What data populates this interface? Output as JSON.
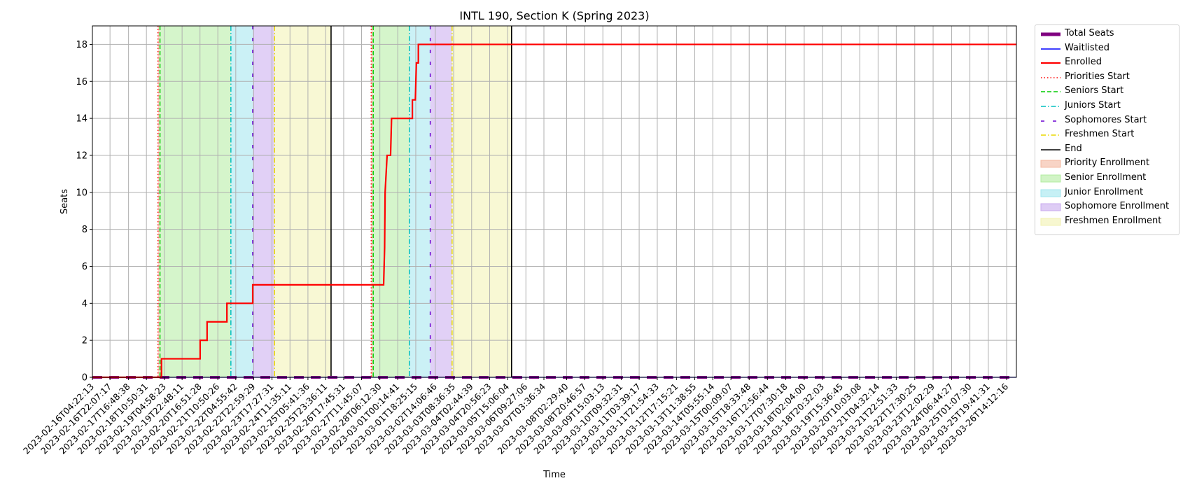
{
  "chart_data": {
    "type": "line",
    "title": "INTL 190, Section K (Spring 2023)",
    "xlabel": "Time",
    "ylabel": "Seats",
    "ylim": [
      0,
      19
    ],
    "xlim": [
      "2023-02-16T04:22:13",
      "2023-03-27T00:00:00"
    ],
    "grid": true,
    "legend_position": "outside-right",
    "y_ticks": [
      0,
      2,
      4,
      6,
      8,
      10,
      12,
      14,
      16,
      18
    ],
    "x_ticks": [
      "2023-02-16T04:22:13",
      "2023-02-16T22:07:17",
      "2023-02-17T16:48:38",
      "2023-02-18T10:50:31",
      "2023-02-19T04:58:23",
      "2023-02-19T22:48:11",
      "2023-02-20T16:51:28",
      "2023-02-21T10:50:26",
      "2023-02-22T04:55:42",
      "2023-02-22T22:59:29",
      "2023-02-23T17:27:31",
      "2023-02-24T11:35:11",
      "2023-02-25T05:41:36",
      "2023-02-25T23:36:11",
      "2023-02-26T17:45:31",
      "2023-02-27T11:45:07",
      "2023-02-28T06:12:30",
      "2023-03-01T00:14:41",
      "2023-03-01T18:25:15",
      "2023-03-02T14:06:46",
      "2023-03-03T08:36:35",
      "2023-03-04T02:44:39",
      "2023-03-04T20:56:23",
      "2023-03-05T15:06:04",
      "2023-03-06T09:27:06",
      "2023-03-07T03:36:34",
      "2023-03-08T02:29:40",
      "2023-03-08T20:46:57",
      "2023-03-09T15:03:13",
      "2023-03-10T09:32:31",
      "2023-03-11T03:39:17",
      "2023-03-11T21:54:33",
      "2023-03-12T17:15:21",
      "2023-03-13T11:38:55",
      "2023-03-14T05:55:14",
      "2023-03-15T00:09:07",
      "2023-03-15T18:33:48",
      "2023-03-16T12:56:44",
      "2023-03-17T07:30:18",
      "2023-03-18T02:04:00",
      "2023-03-18T20:32:03",
      "2023-03-19T15:36:45",
      "2023-03-20T10:03:08",
      "2023-03-21T04:32:14",
      "2023-03-21T22:51:33",
      "2023-03-22T17:30:25",
      "2023-03-23T12:02:29",
      "2023-03-24T06:44:27",
      "2023-03-25T01:07:30",
      "2023-03-25T19:41:31",
      "2023-03-26T14:12:16"
    ],
    "series": [
      {
        "name": "Total Seats",
        "style": "dashed-thick",
        "color": "#800080",
        "points": [
          [
            "2023-02-16T04:22:13",
            0
          ],
          [
            "2023-03-27T00:00:00",
            0
          ]
        ]
      },
      {
        "name": "Waitlisted",
        "style": "solid",
        "color": "#0000ff",
        "points": [
          [
            "2023-02-16T04:22:13",
            0
          ],
          [
            "2023-03-27T00:00:00",
            0
          ]
        ]
      },
      {
        "name": "Enrolled",
        "style": "step",
        "color": "#ff0000",
        "points": [
          [
            "2023-02-16T04:22:13",
            0
          ],
          [
            "2023-02-19T02:00:00",
            0
          ],
          [
            "2023-02-19T02:00:00",
            1
          ],
          [
            "2023-02-20T17:00:00",
            1
          ],
          [
            "2023-02-20T17:00:00",
            2
          ],
          [
            "2023-02-21T00:00:00",
            2
          ],
          [
            "2023-02-21T00:00:00",
            3
          ],
          [
            "2023-02-21T20:00:00",
            3
          ],
          [
            "2023-02-21T20:00:00",
            4
          ],
          [
            "2023-02-22T22:00:00",
            4
          ],
          [
            "2023-02-22T22:00:00",
            5
          ],
          [
            "2023-02-28T10:00:00",
            5
          ],
          [
            "2023-02-28T10:30:00",
            6
          ],
          [
            "2023-02-28T11:00:00",
            7
          ],
          [
            "2023-02-28T11:30:00",
            10
          ],
          [
            "2023-02-28T12:30:00",
            11
          ],
          [
            "2023-02-28T13:30:00",
            12
          ],
          [
            "2023-02-28T17:00:00",
            12
          ],
          [
            "2023-02-28T17:30:00",
            13
          ],
          [
            "2023-02-28T18:00:00",
            14
          ],
          [
            "2023-03-01T15:00:00",
            14
          ],
          [
            "2023-03-01T15:00:00",
            15
          ],
          [
            "2023-03-01T18:00:00",
            15
          ],
          [
            "2023-03-01T19:00:00",
            17
          ],
          [
            "2023-03-01T21:00:00",
            17
          ],
          [
            "2023-03-01T21:00:00",
            18
          ],
          [
            "2023-03-27T00:00:00",
            18
          ]
        ]
      }
    ],
    "vlines": [
      {
        "name": "Priorities Start",
        "color": "#ff0000",
        "style": "dotted",
        "x": [
          "2023-02-18T22:30:00",
          "2023-02-27T21:30:00"
        ]
      },
      {
        "name": "Seniors Start",
        "color": "#00cc00",
        "style": "dashed",
        "x": [
          "2023-02-19T00:30:00",
          "2023-02-27T23:30:00"
        ]
      },
      {
        "name": "Juniors Start",
        "color": "#00bfbf",
        "style": "dashdot",
        "x": [
          "2023-02-22T00:00:00",
          "2023-03-01T12:00:00"
        ]
      },
      {
        "name": "Sophomores Start",
        "color": "#6a00d0",
        "style": "loosedash",
        "x": [
          "2023-02-22T22:00:00",
          "2023-03-02T09:00:00"
        ]
      },
      {
        "name": "Freshmen Start",
        "color": "#e8d800",
        "style": "dashdot",
        "x": [
          "2023-02-23T20:00:00",
          "2023-03-03T07:00:00"
        ]
      },
      {
        "name": "End",
        "color": "#000000",
        "style": "solid",
        "x": [
          "2023-02-26T05:00:00",
          "2023-03-05T19:00:00"
        ]
      }
    ],
    "spans": [
      {
        "name": "Priority Enrollment",
        "color": "#f4b8a0",
        "ranges": [
          [
            "2023-02-18T22:30:00",
            "2023-02-19T00:30:00"
          ],
          [
            "2023-02-27T21:30:00",
            "2023-02-27T23:30:00"
          ]
        ]
      },
      {
        "name": "Senior Enrollment",
        "color": "#b2eca0",
        "ranges": [
          [
            "2023-02-19T00:30:00",
            "2023-02-22T00:00:00"
          ],
          [
            "2023-02-27T23:30:00",
            "2023-03-01T12:00:00"
          ]
        ]
      },
      {
        "name": "Junior Enrollment",
        "color": "#a0e6ee",
        "ranges": [
          [
            "2023-02-22T00:00:00",
            "2023-02-22T22:00:00"
          ],
          [
            "2023-03-01T12:00:00",
            "2023-03-02T09:00:00"
          ]
        ]
      },
      {
        "name": "Sophomore Enrollment",
        "color": "#c8aaee",
        "ranges": [
          [
            "2023-02-22T22:00:00",
            "2023-02-23T20:00:00"
          ],
          [
            "2023-03-02T09:00:00",
            "2023-03-03T07:00:00"
          ]
        ]
      },
      {
        "name": "Freshmen Enrollment",
        "color": "#f2f2b0",
        "ranges": [
          [
            "2023-02-23T20:00:00",
            "2023-02-26T05:00:00"
          ],
          [
            "2023-03-03T07:00:00",
            "2023-03-05T19:00:00"
          ]
        ]
      }
    ],
    "legend": [
      {
        "label": "Total Seats",
        "kind": "thick",
        "color": "#800080"
      },
      {
        "label": "Waitlisted",
        "kind": "line",
        "color": "#0000ff"
      },
      {
        "label": "Enrolled",
        "kind": "line2",
        "color": "#ff0000"
      },
      {
        "label": "Priorities Start",
        "kind": "dotted",
        "color": "#ff0000"
      },
      {
        "label": "Seniors Start",
        "kind": "dashed",
        "color": "#00cc00"
      },
      {
        "label": "Juniors Start",
        "kind": "dashdot",
        "color": "#00bfbf"
      },
      {
        "label": "Sophomores Start",
        "kind": "loosedash",
        "color": "#6a00d0"
      },
      {
        "label": "Freshmen Start",
        "kind": "dashdot",
        "color": "#e8d800"
      },
      {
        "label": "End",
        "kind": "line",
        "color": "#000000"
      },
      {
        "label": "Priority Enrollment",
        "kind": "patch",
        "color": "#f4b8a0"
      },
      {
        "label": "Senior Enrollment",
        "kind": "patch",
        "color": "#b2eca0"
      },
      {
        "label": "Junior Enrollment",
        "kind": "patch",
        "color": "#a0e6ee"
      },
      {
        "label": "Sophomore Enrollment",
        "kind": "patch",
        "color": "#c8aaee"
      },
      {
        "label": "Freshmen Enrollment",
        "kind": "patch",
        "color": "#f2f2b0"
      }
    ]
  }
}
